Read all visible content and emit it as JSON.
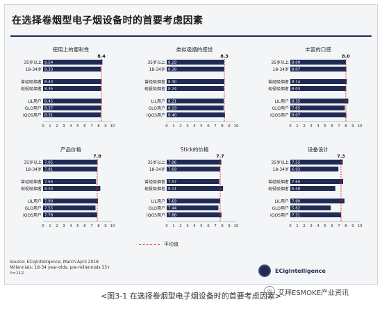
{
  "title": "在选择卷烟型电子烟设备时的首要考虑因素",
  "legend": {
    "label": "平均值"
  },
  "source": [
    "Source: ECigIntelligence, March-April 2018",
    "Millennials: 18-34 year-olds; pre-millennials 35+",
    "n=112"
  ],
  "logo": {
    "text": "ECigIntelligence"
  },
  "caption": "<图3-1 在选择卷烟型电子烟设备时的首要考虑因素>",
  "watermark": "艾拜ESMOKE产业资讯",
  "colors": {
    "bar": "#1f2a55",
    "avg_line": "#e0312f"
  },
  "chart_data": [
    {
      "type": "bar",
      "orientation": "horizontal",
      "title": "使用上的便利性",
      "average": 8.4,
      "average_label": "8.4",
      "xlim": [
        0,
        10
      ],
      "xticks": [
        "0",
        "1",
        "2",
        "3",
        "4",
        "5",
        "6",
        "7",
        "8",
        "9",
        "10"
      ],
      "categories": [
        "35岁以上",
        "18-34岁",
        "曾经吸烟者",
        "现役吸烟者",
        "LIL用户",
        "GLO用户",
        "IQOS用户"
      ],
      "values": [
        8.54,
        8.33,
        8.43,
        8.35,
        8.45,
        8.37,
        8.31
      ],
      "labels": [
        "8.54",
        "8.33",
        "8.43",
        "8.35",
        "8.45",
        "8.37",
        "8.31"
      ]
    },
    {
      "type": "bar",
      "orientation": "horizontal",
      "title": "类似吸烟的感觉",
      "average": 8.3,
      "average_label": "8.3",
      "xlim": [
        0,
        10
      ],
      "xticks": [
        "0",
        "1",
        "2",
        "3",
        "4",
        "5",
        "6",
        "7",
        "8",
        "9",
        "10"
      ],
      "categories": [
        "35岁以上",
        "18-34岁",
        "曾经吸烟者",
        "现役吸烟者",
        "LIL用户",
        "GLO用户",
        "IQOS用户"
      ],
      "values": [
        8.29,
        8.28,
        8.3,
        8.24,
        8.21,
        8.19,
        8.4
      ],
      "labels": [
        "8.29",
        "8.28",
        "8.30",
        "8.24",
        "8.21",
        "8.19",
        "8.40"
      ]
    },
    {
      "type": "bar",
      "orientation": "horizontal",
      "title": "丰富的口感",
      "average": 8.0,
      "average_label": "8.0",
      "xlim": [
        0,
        10
      ],
      "xticks": [
        "0",
        "1",
        "2",
        "3",
        "4",
        "5",
        "6",
        "7",
        "8",
        "9",
        "10"
      ],
      "categories": [
        "35岁以上",
        "18-34岁",
        "曾经吸烟者",
        "现役吸烟者",
        "LIL用户",
        "GLO用户",
        "IQOS用户"
      ],
      "values": [
        8.0,
        8.07,
        8.14,
        8.03,
        8.35,
        7.85,
        8.07
      ],
      "labels": [
        "8.00",
        "8.07",
        "8.14",
        "8.03",
        "8.35",
        "7.85",
        "8.07"
      ]
    },
    {
      "type": "bar",
      "orientation": "horizontal",
      "title": "产品价格",
      "average": 7.8,
      "average_label": "7.8",
      "xlim": [
        0,
        10
      ],
      "xticks": [
        "0",
        "1",
        "2",
        "3",
        "4",
        "5",
        "6",
        "7",
        "8",
        "9",
        "10"
      ],
      "categories": [
        "35岁以上",
        "18-34岁",
        "曾经吸烟者",
        "现役吸烟者",
        "LIL用户",
        "GLO用户",
        "IQOS用户"
      ],
      "values": [
        7.85,
        7.81,
        7.63,
        8.24,
        7.9,
        7.55,
        7.78
      ],
      "labels": [
        "7.85",
        "7.81",
        "7.63",
        "8.24",
        "7.90",
        "7.55",
        "7.78"
      ]
    },
    {
      "type": "bar",
      "orientation": "horizontal",
      "title": "Stick的价格",
      "average": 7.7,
      "average_label": "7.7",
      "xlim": [
        0,
        10
      ],
      "xticks": [
        "0",
        "1",
        "2",
        "3",
        "4",
        "5",
        "6",
        "7",
        "8",
        "9",
        "10"
      ],
      "categories": [
        "35岁以上",
        "18-34岁",
        "曾经吸烟者",
        "现役吸烟者",
        "LIL用户",
        "GLO用户",
        "IQOS用户"
      ],
      "values": [
        7.86,
        7.69,
        7.57,
        8.11,
        7.69,
        7.44,
        7.88
      ],
      "labels": [
        "7.86",
        "7.69",
        "7.57",
        "8.11",
        "7.69",
        "7.44",
        "7.88"
      ]
    },
    {
      "type": "bar",
      "orientation": "horizontal",
      "title": "设备设计",
      "average": 7.3,
      "average_label": "7.3",
      "xlim": [
        0,
        10
      ],
      "xticks": [
        "0",
        "1",
        "2",
        "3",
        "4",
        "5",
        "6",
        "7",
        "8",
        "9",
        "10"
      ],
      "categories": [
        "35岁以上",
        "18-34岁",
        "曾经吸烟者",
        "现役吸烟者",
        "LIL用户",
        "GLO用户",
        "IQOS用户"
      ],
      "values": [
        7.55,
        6.92,
        7.6,
        6.48,
        7.8,
        5.82,
        7.31
      ],
      "labels": [
        "7.55",
        "6.92",
        "7.60",
        "6.48",
        "7.80",
        "5.82",
        "7.31"
      ]
    }
  ]
}
